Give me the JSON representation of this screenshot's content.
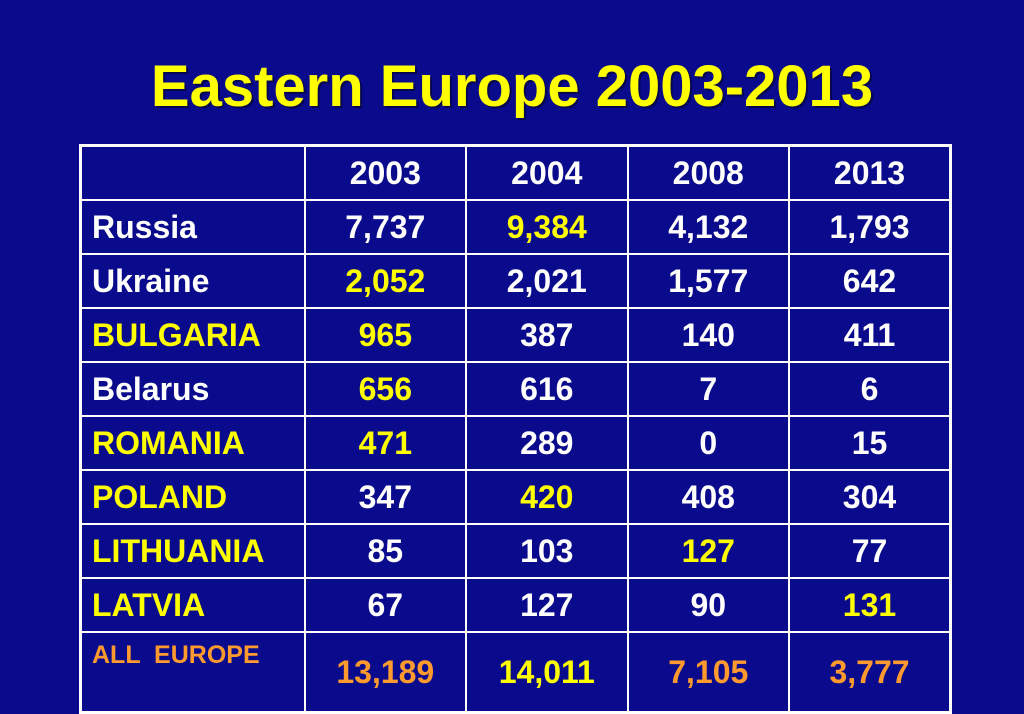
{
  "title": "Eastern Europe 2003-2013",
  "colors": {
    "background": "#0a0a8c",
    "highlight_yellow": "#ffff00",
    "total_orange": "#ff9a2e",
    "text_white": "#ffffff",
    "border_white": "#ffffff"
  },
  "table": {
    "corner": "",
    "columns": [
      "2003",
      "2004",
      "2008",
      "2013"
    ],
    "rows": [
      {
        "label": "Russia",
        "label_color": "white",
        "values": [
          "7,737",
          "9,384",
          "4,132",
          "1,793"
        ],
        "highlight": [
          false,
          true,
          false,
          false
        ]
      },
      {
        "label": "Ukraine",
        "label_color": "white",
        "values": [
          "2,052",
          "2,021",
          "1,577",
          "642"
        ],
        "highlight": [
          true,
          false,
          false,
          false
        ]
      },
      {
        "label": "BULGARIA",
        "label_color": "yellow",
        "values": [
          "965",
          "387",
          "140",
          "411"
        ],
        "highlight": [
          true,
          false,
          false,
          false
        ]
      },
      {
        "label": "Belarus",
        "label_color": "white",
        "values": [
          "656",
          "616",
          "7",
          "6"
        ],
        "highlight": [
          true,
          false,
          false,
          false
        ]
      },
      {
        "label": "ROMANIA",
        "label_color": "yellow",
        "values": [
          "471",
          "289",
          "0",
          "15"
        ],
        "highlight": [
          true,
          false,
          false,
          false
        ]
      },
      {
        "label": "POLAND",
        "label_color": "yellow",
        "values": [
          "347",
          "420",
          "408",
          "304"
        ],
        "highlight": [
          false,
          true,
          false,
          false
        ]
      },
      {
        "label": "LITHUANIA",
        "label_color": "yellow",
        "values": [
          "85",
          "103",
          "127",
          "77"
        ],
        "highlight": [
          false,
          false,
          true,
          false
        ]
      },
      {
        "label": "LATVIA",
        "label_color": "yellow",
        "values": [
          "67",
          "127",
          "90",
          "131"
        ],
        "highlight": [
          false,
          false,
          false,
          true
        ]
      }
    ],
    "total": {
      "label": "ALL  EUROPE",
      "label_color": "orange",
      "values": [
        "13,189",
        "14,011",
        "7,105",
        "3,777"
      ],
      "value_colors": [
        "orange",
        "yellow",
        "orange",
        "orange"
      ]
    }
  }
}
